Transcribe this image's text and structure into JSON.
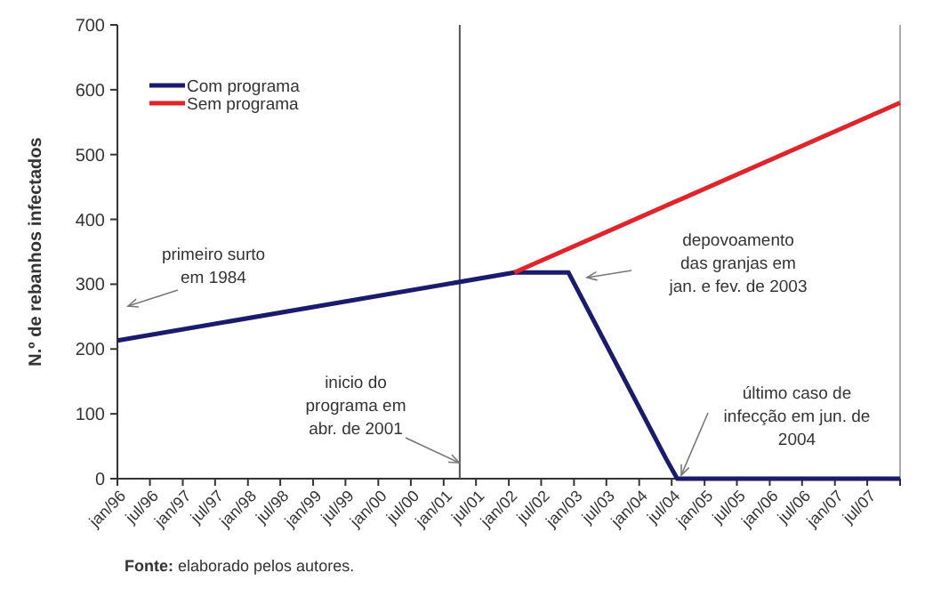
{
  "chart_data": {
    "type": "line",
    "ylabel": "N.º de rebanhos infectados",
    "xlim": [
      "1996-01",
      "2008-01"
    ],
    "xticks": [
      {
        "value": "1996-01",
        "label": "jan/96"
      },
      {
        "value": "1996-07",
        "label": "jul/96"
      },
      {
        "value": "1997-01",
        "label": "jan/97"
      },
      {
        "value": "1997-07",
        "label": "jul/97"
      },
      {
        "value": "1998-01",
        "label": "jan/98"
      },
      {
        "value": "1998-07",
        "label": "jul/98"
      },
      {
        "value": "1999-01",
        "label": "jan/99"
      },
      {
        "value": "1999-07",
        "label": "jul/99"
      },
      {
        "value": "2000-01",
        "label": "jan/00"
      },
      {
        "value": "2000-07",
        "label": "jul/00"
      },
      {
        "value": "2001-01",
        "label": "jan/01"
      },
      {
        "value": "2001-07",
        "label": "jul/01"
      },
      {
        "value": "2002-01",
        "label": "jan/02"
      },
      {
        "value": "2002-07",
        "label": "jul/02"
      },
      {
        "value": "2003-01",
        "label": "jan/03"
      },
      {
        "value": "2003-07",
        "label": "jul/03"
      },
      {
        "value": "2004-01",
        "label": "jan/04"
      },
      {
        "value": "2004-07",
        "label": "jul/04"
      },
      {
        "value": "2005-01",
        "label": "jan/05"
      },
      {
        "value": "2005-07",
        "label": "jul/05"
      },
      {
        "value": "2006-01",
        "label": "jan/06"
      },
      {
        "value": "2006-07",
        "label": "jul/06"
      },
      {
        "value": "2007-01",
        "label": "jan/07"
      },
      {
        "value": "2007-07",
        "label": "jul/07"
      },
      {
        "value": "2008-01",
        "label": null
      }
    ],
    "ylim": [
      0,
      700
    ],
    "yticks": [
      0,
      100,
      200,
      300,
      400,
      500,
      600,
      700
    ],
    "series": [
      {
        "name": "Com programa",
        "color": "#1a1a6e",
        "x": [
          "1996-01",
          "2002-02",
          "2002-12",
          "2004-06",
          "2004-08",
          "2008-01"
        ],
        "values": [
          213,
          318,
          318,
          30,
          0,
          0
        ]
      },
      {
        "name": "Sem programa",
        "color": "#e0242a",
        "x": [
          "2002-02",
          "2008-01"
        ],
        "values": [
          318,
          580
        ]
      }
    ],
    "ref_lines": [
      {
        "axis": "x",
        "value": "2001-04",
        "color": "#555555"
      }
    ],
    "legend": "top left",
    "grid": false,
    "annotations": [
      "primeiro surto\nem 1984",
      "depovoamento\ndas granjas em\njan. e fev. de 2003",
      "inicio do\nprograma em\nabr. de 2001",
      "último caso de\ninfecção em jun. de\n2004",
      "Fonte: elaborado pelos autores."
    ]
  }
}
